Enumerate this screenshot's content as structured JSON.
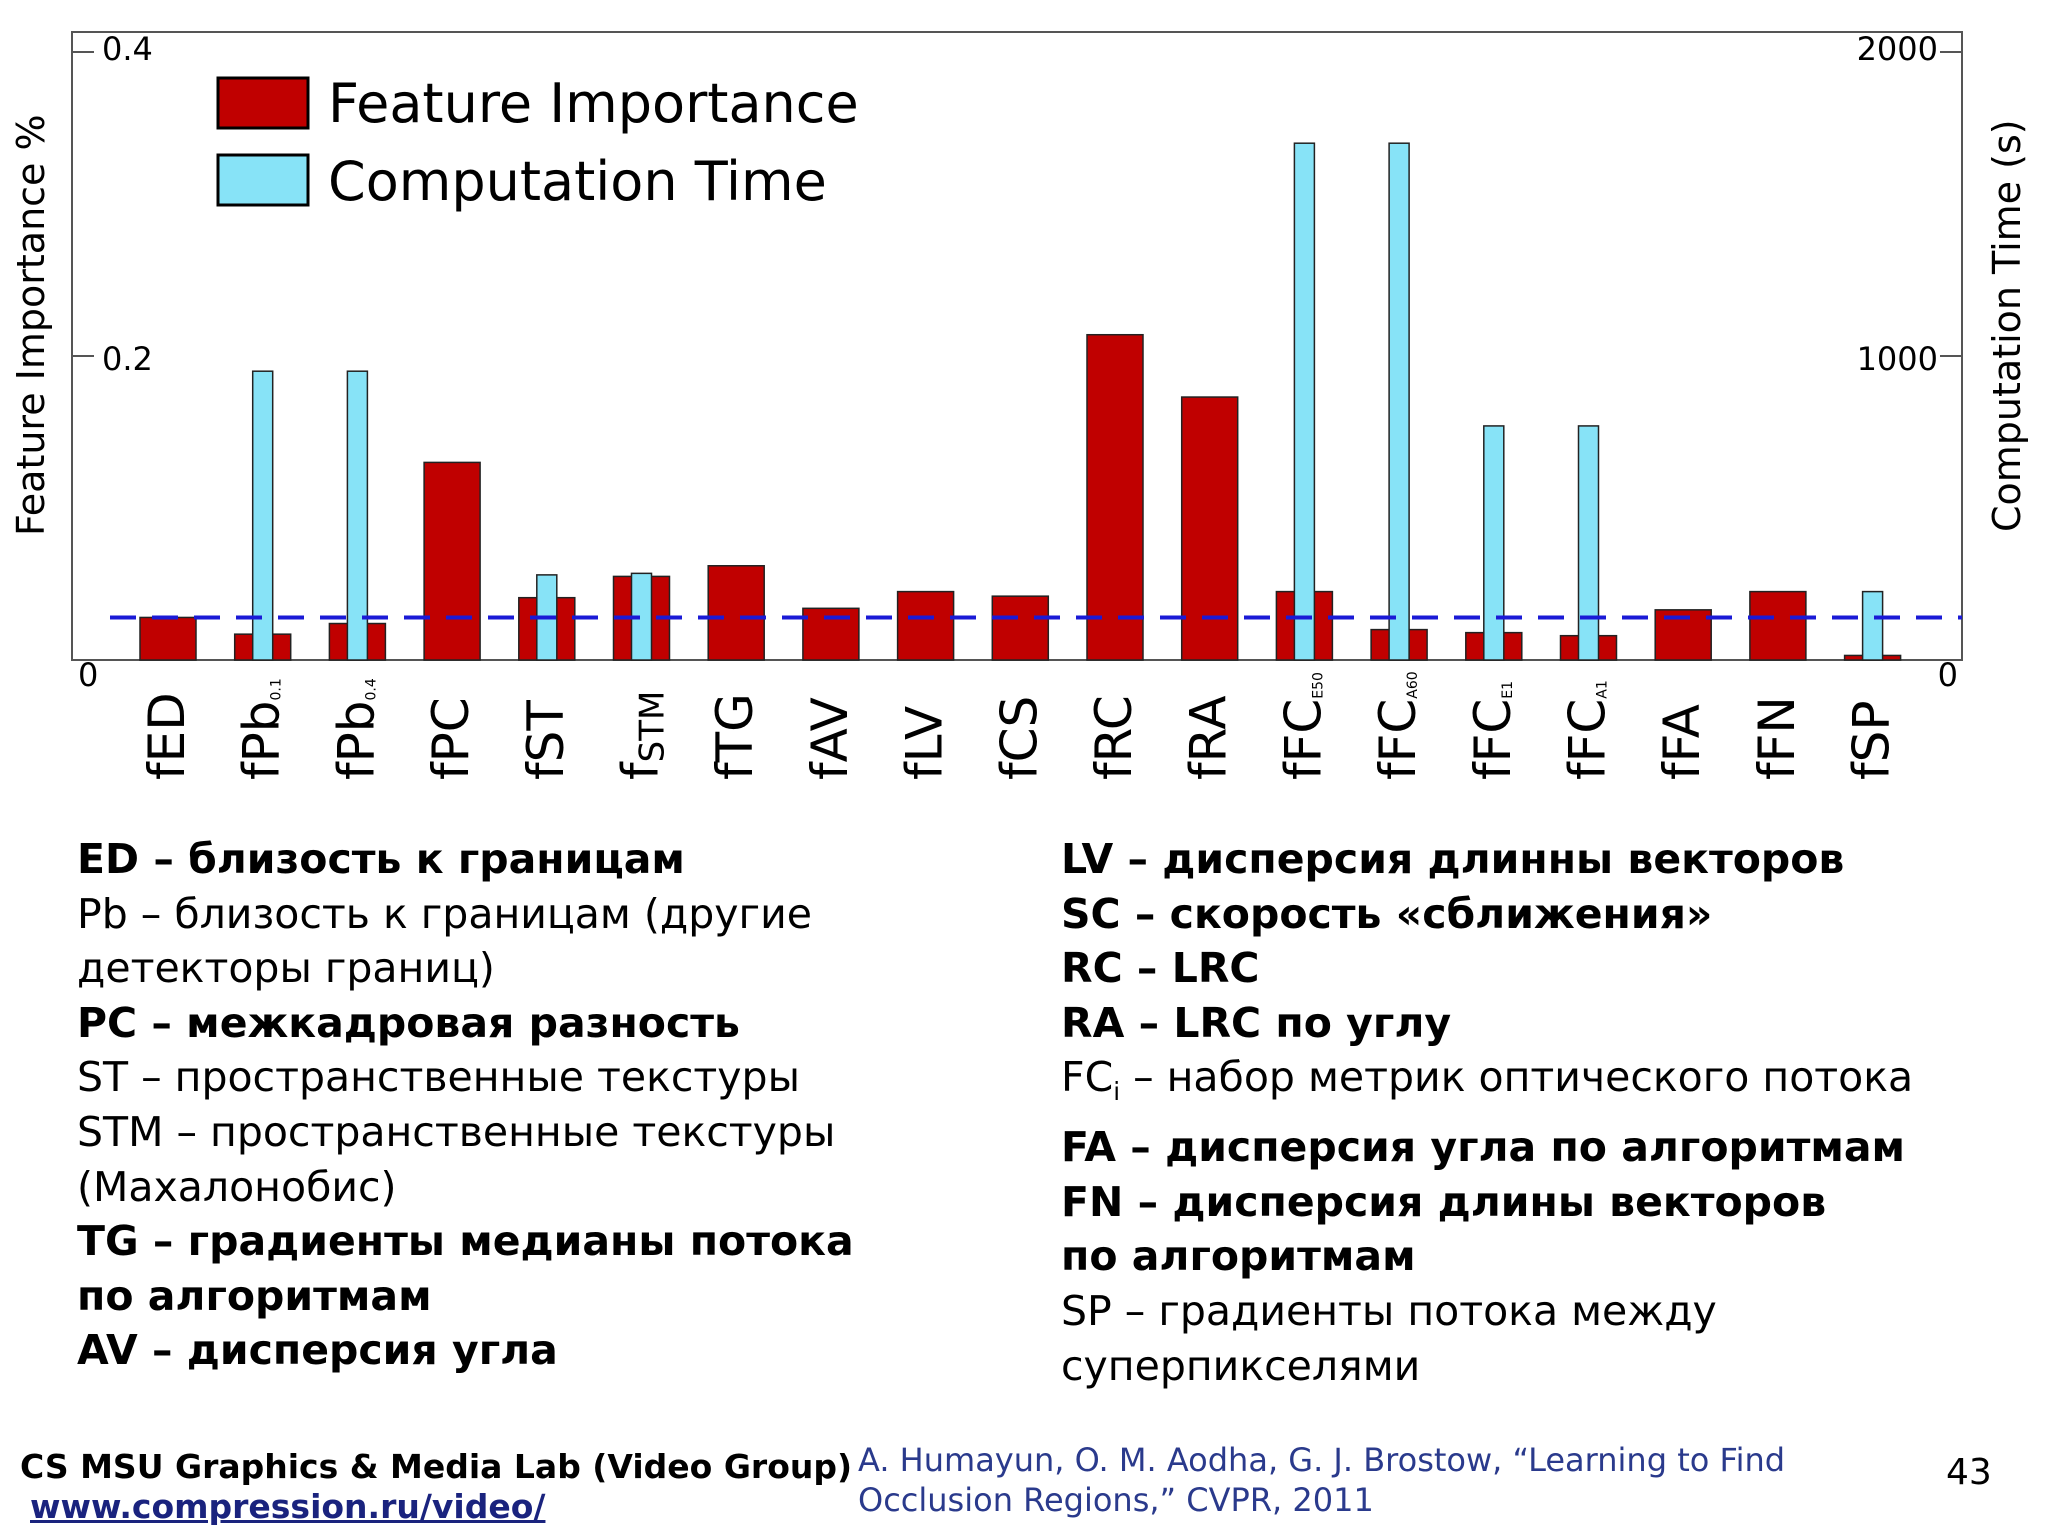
{
  "chart_data": {
    "type": "bar",
    "legend": [
      "Feature Importance",
      "Computation Time"
    ],
    "ylabel_left": "Feature Importance %",
    "ylabel_right": "Computation Time (s)",
    "ylim_left": [
      0,
      0.4
    ],
    "ylim_right": [
      0,
      2000
    ],
    "yticks_left": [
      "0",
      "0.2",
      "0.4"
    ],
    "yticks_right": [
      "0",
      "1000",
      "2000"
    ],
    "dashed_reference_value": 0.028,
    "categories": [
      {
        "base": "f",
        "main": "ED",
        "sub": ""
      },
      {
        "base": "f",
        "main": "Pb",
        "sub": "0.1"
      },
      {
        "base": "f",
        "main": "Pb",
        "sub": "0.4"
      },
      {
        "base": "f",
        "main": "PC",
        "sub": ""
      },
      {
        "base": "f",
        "main": "ST",
        "sub": ""
      },
      {
        "base": "f",
        "main": "",
        "sub": "STM"
      },
      {
        "base": "f",
        "main": "TG",
        "sub": ""
      },
      {
        "base": "f",
        "main": "AV",
        "sub": ""
      },
      {
        "base": "f",
        "main": "LV",
        "sub": ""
      },
      {
        "base": "f",
        "main": "CS",
        "sub": ""
      },
      {
        "base": "f",
        "main": "RC",
        "sub": ""
      },
      {
        "base": "f",
        "main": "RA",
        "sub": ""
      },
      {
        "base": "f",
        "main": "FC",
        "sub": "E50"
      },
      {
        "base": "f",
        "main": "FC",
        "sub": "A60"
      },
      {
        "base": "f",
        "main": "FC",
        "sub": "E1"
      },
      {
        "base": "f",
        "main": "FC",
        "sub": "A1"
      },
      {
        "base": "f",
        "main": "FA",
        "sub": ""
      },
      {
        "base": "f",
        "main": "FN",
        "sub": ""
      },
      {
        "base": "f",
        "main": "SP",
        "sub": ""
      }
    ],
    "series": [
      {
        "name": "Feature Importance",
        "color": "#c00000",
        "values": [
          0.028,
          0.017,
          0.024,
          0.13,
          0.041,
          0.055,
          0.062,
          0.034,
          0.045,
          0.042,
          0.214,
          0.173,
          0.045,
          0.02,
          0.018,
          0.016,
          0.033,
          0.045,
          0.003
        ]
      },
      {
        "name": "Computation Time",
        "color": "#87e3f7",
        "values": [
          0,
          950,
          950,
          0,
          280,
          285,
          0,
          0,
          0,
          0,
          0,
          0,
          1700,
          1700,
          770,
          770,
          0,
          0,
          225
        ]
      }
    ]
  },
  "notes_left": [
    {
      "parts": [
        {
          "t": "ED – близость к границам",
          "bold": true
        }
      ]
    },
    {
      "parts": [
        {
          "t": "Pb – близость к границам (другие",
          "bold": false
        }
      ]
    },
    {
      "parts": [
        {
          "t": "детекторы границ)",
          "bold": false
        }
      ]
    },
    {
      "parts": [
        {
          "t": "PC – межкадровая разность",
          "bold": true
        }
      ]
    },
    {
      "parts": [
        {
          "t": "ST – пространственные текстуры",
          "bold": false
        }
      ]
    },
    {
      "parts": [
        {
          "t": "STM – пространственные текстуры",
          "bold": false
        }
      ]
    },
    {
      "parts": [
        {
          "t": "(Махалонобис)",
          "bold": false
        }
      ]
    },
    {
      "parts": [
        {
          "t": "TG – градиенты медианы потока",
          "bold": true
        }
      ]
    },
    {
      "parts": [
        {
          "t": "по алгоритмам",
          "bold": true
        }
      ]
    },
    {
      "parts": [
        {
          "t": "AV – дисперсия угла",
          "bold": true
        }
      ]
    }
  ],
  "notes_right": [
    {
      "parts": [
        {
          "t": "LV – дисперсия длинны векторов",
          "bold": true
        }
      ]
    },
    {
      "parts": [
        {
          "t": "SC – скорость «сближения»",
          "bold": true
        }
      ]
    },
    {
      "parts": [
        {
          "t": "RC – LRC",
          "bold": true
        }
      ]
    },
    {
      "parts": [
        {
          "t": "RA – LRC по углу",
          "bold": true
        }
      ]
    },
    {
      "parts": [
        {
          "t": "FC",
          "bold": false
        },
        {
          "t": "i",
          "bold": false,
          "sub": true
        },
        {
          "t": " – набор метрик оптического потока",
          "bold": false
        }
      ]
    },
    {
      "parts": [
        {
          "t": "FA – дисперсия угла по алгоритмам",
          "bold": true
        }
      ]
    },
    {
      "parts": [
        {
          "t": "FN – дисперсия длины векторов",
          "bold": true
        }
      ]
    },
    {
      "parts": [
        {
          "t": "по алгоритмам",
          "bold": true
        }
      ]
    },
    {
      "parts": [
        {
          "t": "SP – градиенты потока между",
          "bold": false
        }
      ]
    },
    {
      "parts": [
        {
          "t": "суперпикселями",
          "bold": false
        }
      ]
    }
  ],
  "footer": {
    "lab": "CS MSU Graphics & Media Lab (Video Group)",
    "url": "www.compression.ru/video/",
    "citation_line1": "A. Humayun, O. M. Aodha, G. J. Brostow, “Learning to Find",
    "citation_line2": "Occlusion Regions,” CVPR, 2011",
    "page_number": "43"
  }
}
